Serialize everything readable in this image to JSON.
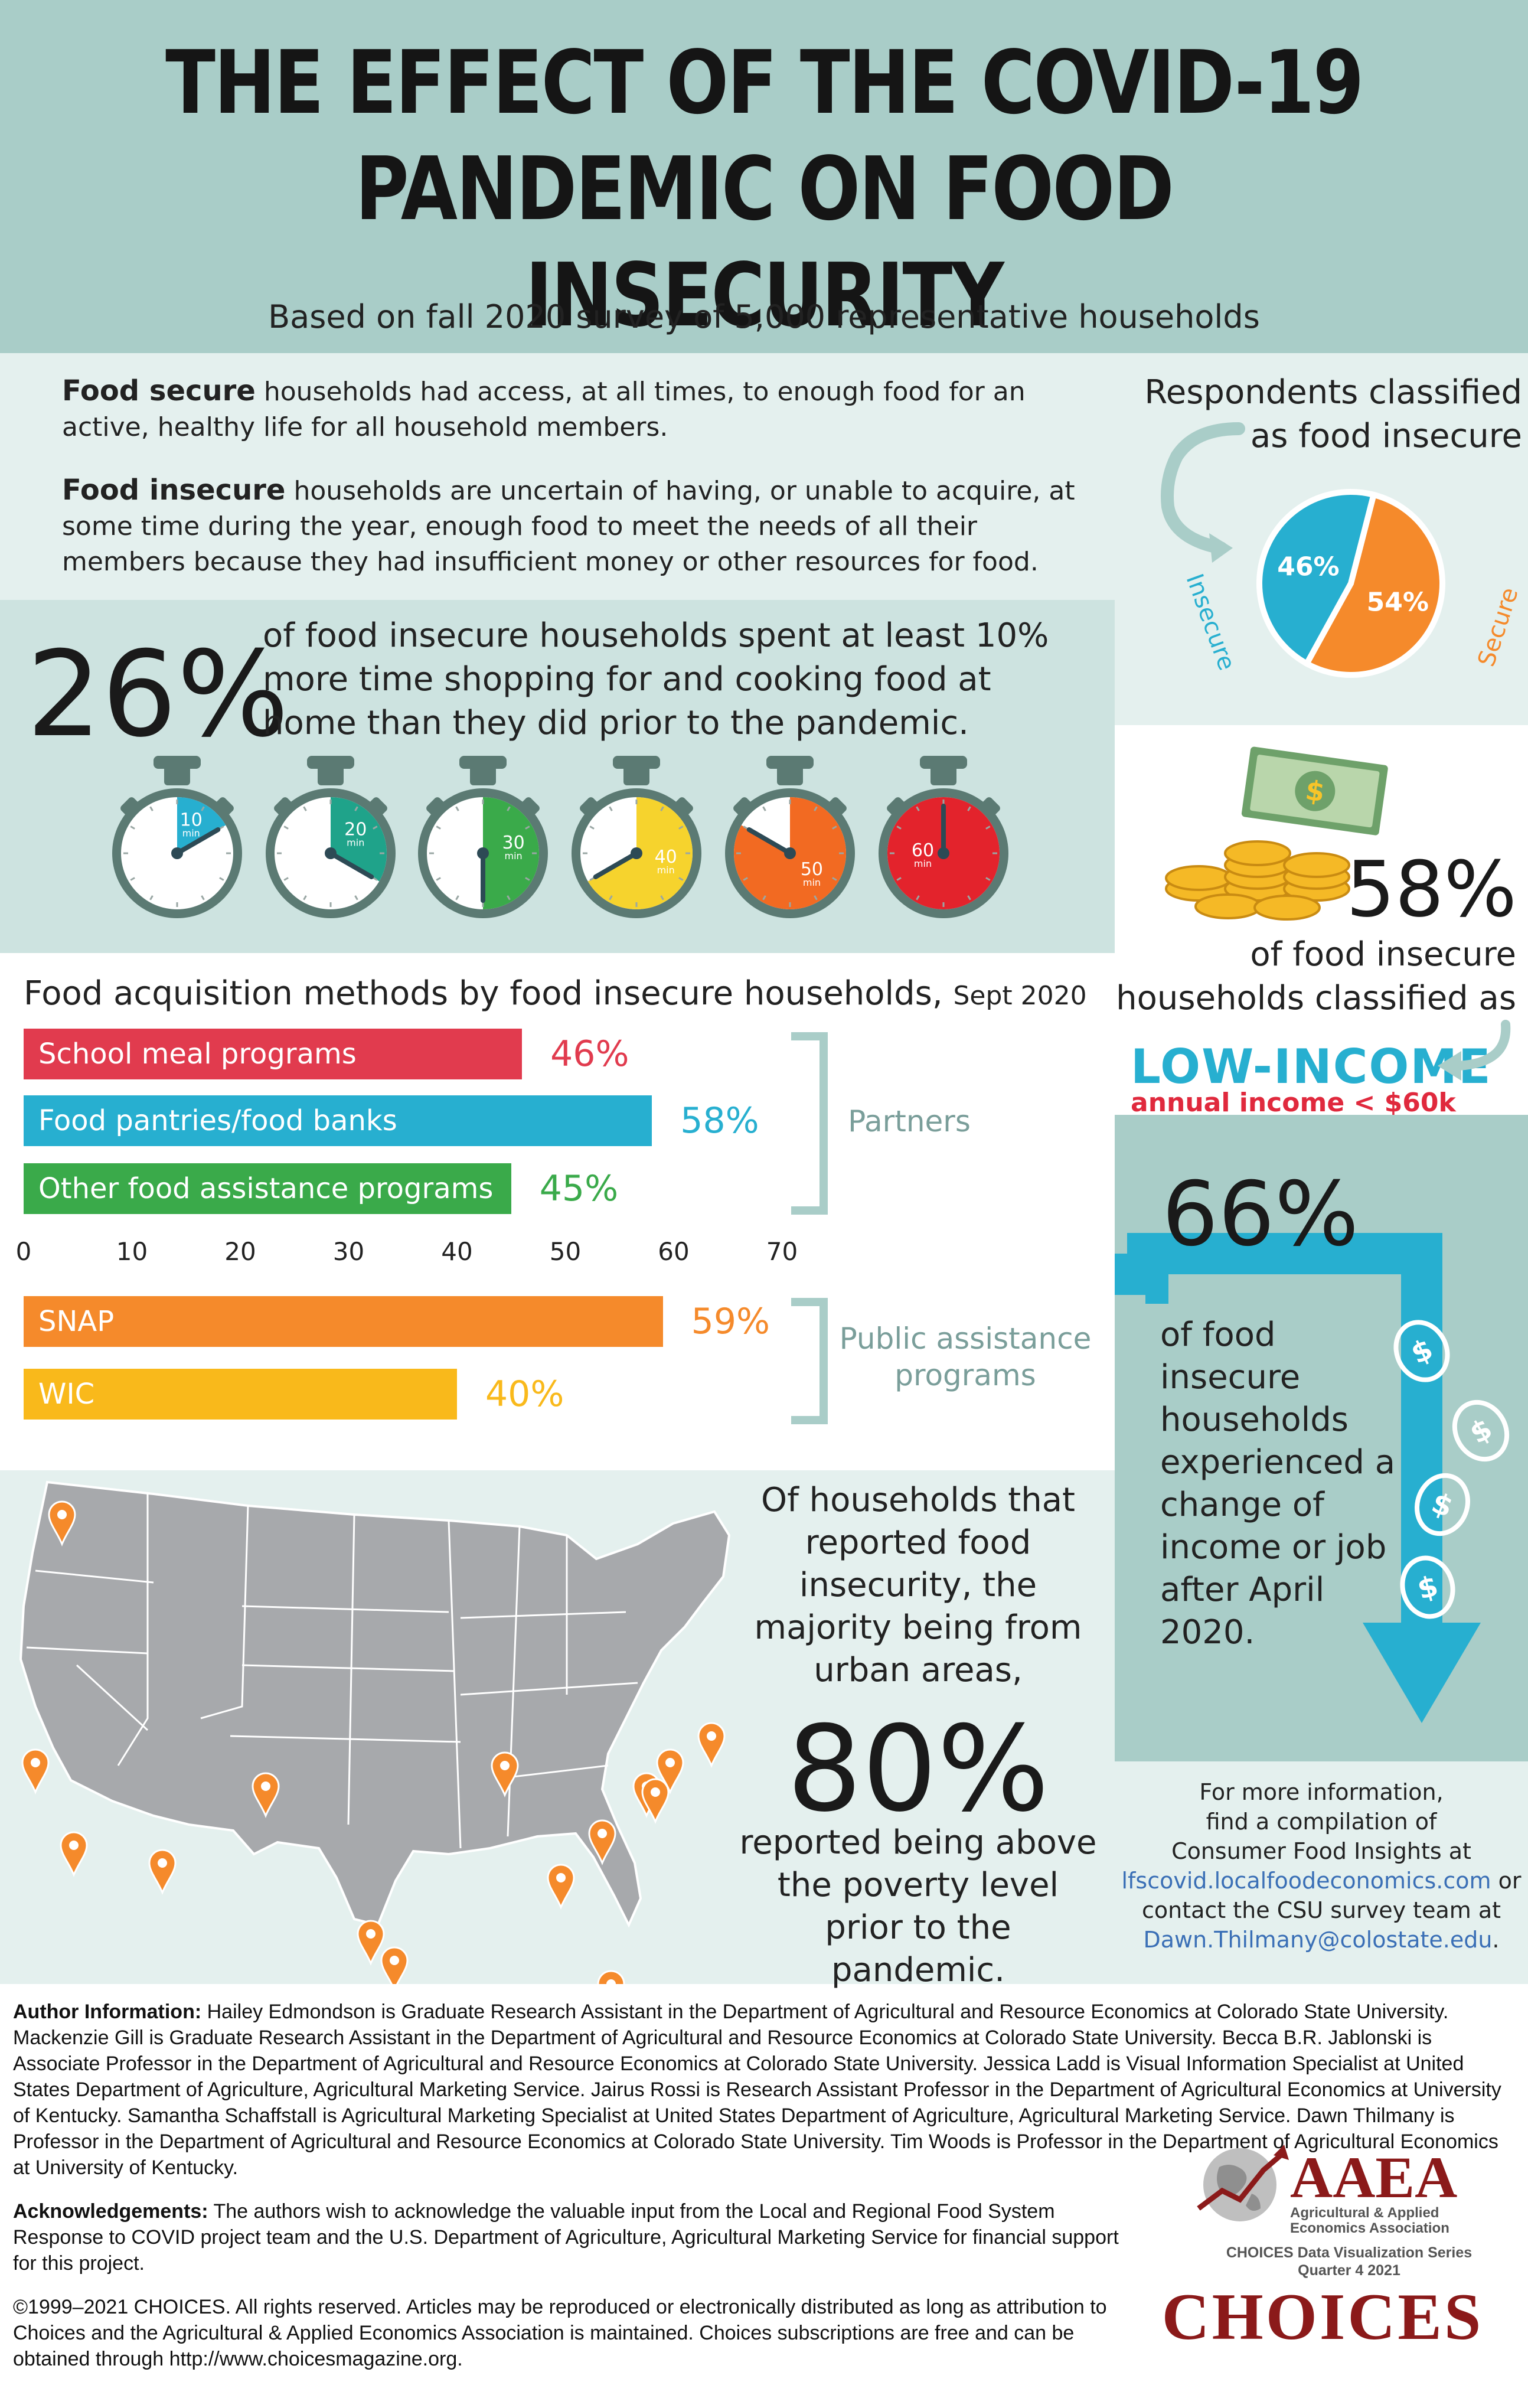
{
  "header": {
    "title_line1": "THE EFFECT OF THE COVID-19",
    "title_line2": "PANDEMIC ON FOOD INSECURITY",
    "subtitle": "Based on fall 2020 survey of 5,000 representative households"
  },
  "definitions": {
    "secure_term": "Food secure",
    "secure_text": " households had access, at all times, to enough food for an active, healthy life for all household members.",
    "insecure_term": "Food insecure",
    "insecure_text": " households are uncertain of having, or unable to acquire, at some time during the year, enough food to meet the needs of all their members because they had insufficient money or other resources for food."
  },
  "pie": {
    "title_line1": "Respondents classified",
    "title_line2": "as food insecure",
    "slices": [
      {
        "label": "Insecure",
        "value": 46,
        "display": "46%",
        "color": "#27afd0"
      },
      {
        "label": "Secure",
        "value": 54,
        "display": "54%",
        "color": "#f58a2b"
      }
    ]
  },
  "time_stat": {
    "percent": "26%",
    "text": "of food insecure households spent at least 10% more time shopping for and cooking food at home than they did prior to the pandemic.",
    "timers": [
      {
        "minutes": "10",
        "unit": "min",
        "color": "#27afd0"
      },
      {
        "minutes": "20",
        "unit": "min",
        "color": "#1fa38a"
      },
      {
        "minutes": "30",
        "unit": "min",
        "color": "#3aaa4a"
      },
      {
        "minutes": "40",
        "unit": "min",
        "color": "#f6d32d"
      },
      {
        "minutes": "50",
        "unit": "min",
        "color": "#f26a22"
      },
      {
        "minutes": "60",
        "unit": "min",
        "color": "#e3232c"
      }
    ]
  },
  "income_stat": {
    "percent": "58%",
    "text_line1": "of food insecure",
    "text_line2": "households classified as",
    "label": "LOW-INCOME",
    "sublabel": "annual income < $60k"
  },
  "chart_data": {
    "type": "bar",
    "orientation": "horizontal",
    "title": "Food acquisition methods by food insecure households,",
    "title_suffix": "Sept 2020",
    "xlim": [
      0,
      70
    ],
    "ticks": [
      "0",
      "10",
      "20",
      "30",
      "40",
      "50",
      "60",
      "70"
    ],
    "groups": [
      {
        "name": "Partners",
        "bars": [
          {
            "category": "School meal programs",
            "value": 46,
            "display": "46%",
            "color": "#e13b4e"
          },
          {
            "category": "Food pantries/food banks",
            "value": 58,
            "display": "58%",
            "color": "#27afd0"
          },
          {
            "category": "Other food assistance programs",
            "value": 45,
            "display": "45%",
            "color": "#3aaa4a"
          }
        ]
      },
      {
        "name_line1": "Public assistance",
        "name_line2": "programs",
        "bars": [
          {
            "category": "SNAP",
            "value": 59,
            "display": "59%",
            "color": "#f58a2b"
          },
          {
            "category": "WIC",
            "value": 40,
            "display": "40%",
            "color": "#f9b91b"
          }
        ]
      }
    ]
  },
  "job_stat": {
    "percent": "66%",
    "text": "of food insecure households experienced a change of income or job after April 2020."
  },
  "urban_stat": {
    "text1": "Of households that reported food insecurity, the majority being from urban areas,",
    "percent": "80%",
    "text2": "reported being above the poverty level prior to the pandemic."
  },
  "info": {
    "line1": "For more information,",
    "line2": "find a compilation of",
    "line3": "Consumer Food Insights at",
    "link1": "lfscovid.localfoodeconomics.com",
    "or": " or",
    "line4": "contact the CSU survey team at",
    "link2": "Dawn.Thilmany@colostate.edu",
    "period": "."
  },
  "footer": {
    "author_label": "Author Information:",
    "author_text": " Hailey Edmondson is Graduate Research Assistant in the Department of Agricultural and Resource Economics at Colorado State University. Mackenzie Gill is Graduate Research Assistant in the Department of Agricultural and Resource Economics at Colorado State University. Becca B.R. Jablonski is Associate Professor in the Department of Agricultural and Resource Economics at Colorado State University. Jessica Ladd is Visual Information Specialist at United States Department of Agriculture, Agricultural Marketing Service. Jairus Rossi is Research Assistant Professor in the Department of Agricultural Economics at University of Kentucky. Samantha Schaffstall is Agricultural Marketing Specialist at United States Department of Agriculture, Agricultural Marketing Service. Dawn Thilmany is Professor in the Department of Agricultural and Resource Economics at Colorado State University. Tim Woods is Professor in the Department of Agricultural Economics at University of Kentucky.",
    "ack_label": "Acknowledgements:",
    "ack_text": " The authors wish to acknowledge the valuable input from the Local and Regional Food System Response to COVID project team and the U.S. Department of Agriculture, Agricultural Marketing Service for financial support for this project.",
    "copyright": "©1999–2021 CHOICES. All rights reserved. Articles may be reproduced or electronically distributed as long as attribution to Choices and the Agricultural & Applied Economics Association is maintained. Choices subscriptions are free and can be obtained through http://www.choicesmagazine.org.",
    "aaea": "AAEA",
    "aaea_sub1": "Agricultural & Applied",
    "aaea_sub2": "Economics Association",
    "series1": "CHOICES Data Visualization Series",
    "series2": "Quarter 4 2021",
    "choices": "CHOICES"
  }
}
